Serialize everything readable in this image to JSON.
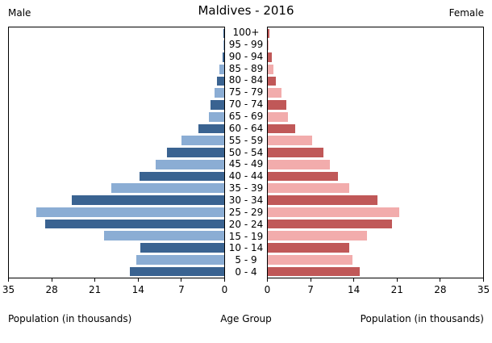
{
  "header": {
    "male_label": "Male",
    "title": "Maldives - 2016",
    "female_label": "Female"
  },
  "axis": {
    "left_title": "Population (in thousands)",
    "center_title": "Age Group",
    "right_title": "Population (in thousands)"
  },
  "chart_data": {
    "type": "bar",
    "subtype": "population-pyramid",
    "title": "Maldives - 2016",
    "xlabel_left": "Population (in thousands)",
    "xlabel_right": "Population (in thousands)",
    "center_label": "Age Group",
    "xlim": [
      0,
      35
    ],
    "x_ticks_male": [
      35,
      28,
      21,
      14,
      7,
      0
    ],
    "x_ticks_female": [
      0,
      7,
      14,
      21,
      28,
      35
    ],
    "categories_top_to_bottom": [
      "100+",
      "95 - 99",
      "90 - 94",
      "85 - 89",
      "80 - 84",
      "75 - 79",
      "70 - 74",
      "65 - 69",
      "60 - 64",
      "55 - 59",
      "50 - 54",
      "45 - 49",
      "40 - 44",
      "35 - 39",
      "30 - 34",
      "25 - 29",
      "20 - 24",
      "15 - 19",
      "10 - 14",
      "5 - 9",
      "0 - 4"
    ],
    "series": [
      {
        "name": "Male",
        "values": [
          0.1,
          0.1,
          0.3,
          0.8,
          1.2,
          1.6,
          2.2,
          2.5,
          4.2,
          6.9,
          9.3,
          11.2,
          13.8,
          18.4,
          24.8,
          30.6,
          29.1,
          19.5,
          13.6,
          14.3,
          15.3
        ]
      },
      {
        "name": "Female",
        "values": [
          0.2,
          0.1,
          0.6,
          0.9,
          1.3,
          2.2,
          3.0,
          3.3,
          4.4,
          7.2,
          9.0,
          10.1,
          11.4,
          13.2,
          17.8,
          21.4,
          20.2,
          16.1,
          13.3,
          13.8,
          14.9
        ]
      }
    ],
    "colors": {
      "male_dark": "#3a6391",
      "male_light": "#8badd4",
      "female_dark": "#c05858",
      "female_light": "#f2acac",
      "axis": "#000000"
    },
    "legend": "none",
    "grid": false
  }
}
